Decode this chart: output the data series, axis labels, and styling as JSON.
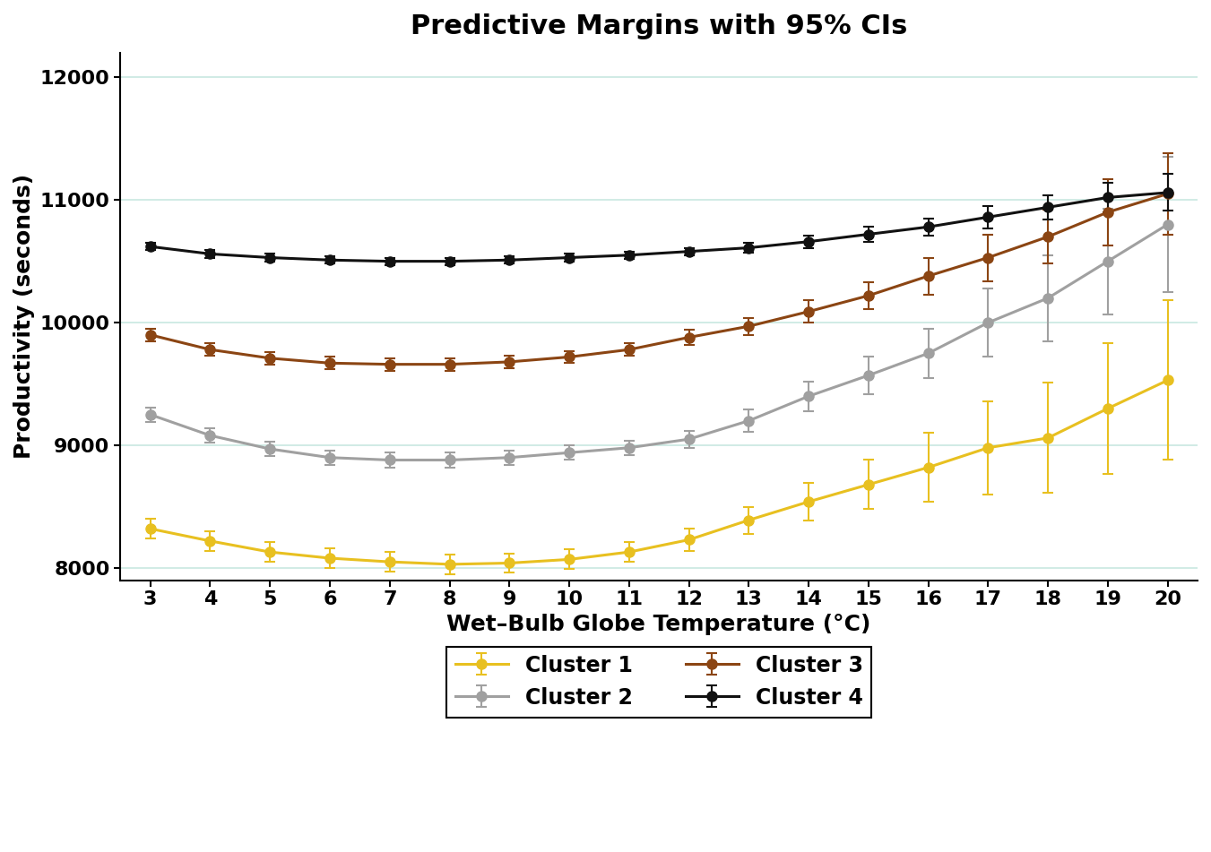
{
  "title": "Predictive Margins with 95% CIs",
  "xlabel": "Wet–Bulb Globe Temperature (°C)",
  "ylabel": "Productivity (seconds)",
  "temps": [
    3,
    4,
    5,
    6,
    7,
    8,
    9,
    10,
    11,
    12,
    13,
    14,
    15,
    16,
    17,
    18,
    19,
    20
  ],
  "cluster1": {
    "y": [
      8320,
      8220,
      8130,
      8080,
      8050,
      8030,
      8040,
      8070,
      8130,
      8230,
      8390,
      8540,
      8680,
      8820,
      8980,
      9060,
      9300,
      9530
    ],
    "ci": [
      80,
      80,
      80,
      80,
      80,
      80,
      80,
      80,
      80,
      90,
      110,
      150,
      200,
      280,
      380,
      450,
      530,
      650
    ],
    "color": "#E8C020",
    "label": "Cluster 1"
  },
  "cluster2": {
    "y": [
      9250,
      9080,
      8970,
      8900,
      8880,
      8880,
      8900,
      8940,
      8980,
      9050,
      9200,
      9400,
      9570,
      9750,
      10000,
      10200,
      10500,
      10800
    ],
    "ci": [
      60,
      60,
      60,
      60,
      60,
      60,
      60,
      60,
      60,
      70,
      90,
      120,
      150,
      200,
      280,
      350,
      430,
      550
    ],
    "color": "#A0A0A0",
    "label": "Cluster 2"
  },
  "cluster3": {
    "y": [
      9900,
      9780,
      9710,
      9670,
      9660,
      9660,
      9680,
      9720,
      9780,
      9880,
      9970,
      10090,
      10220,
      10380,
      10530,
      10700,
      10900,
      11050
    ],
    "ci": [
      50,
      50,
      50,
      50,
      50,
      50,
      50,
      50,
      50,
      60,
      70,
      90,
      110,
      150,
      190,
      220,
      270,
      330
    ],
    "color": "#8B4513",
    "label": "Cluster 3"
  },
  "cluster4": {
    "y": [
      10620,
      10560,
      10530,
      10510,
      10500,
      10500,
      10510,
      10530,
      10550,
      10580,
      10610,
      10660,
      10720,
      10780,
      10860,
      10940,
      11020,
      11060
    ],
    "ci": [
      30,
      30,
      30,
      30,
      30,
      30,
      30,
      30,
      30,
      30,
      40,
      50,
      60,
      70,
      90,
      100,
      120,
      150
    ],
    "color": "#111111",
    "label": "Cluster 4"
  },
  "ylim": [
    7900,
    12200
  ],
  "yticks": [
    8000,
    9000,
    10000,
    11000,
    12000
  ],
  "grid_color": "#c8e8e0",
  "background_color": "#ffffff",
  "title_fontsize": 22,
  "label_fontsize": 18,
  "tick_fontsize": 16,
  "legend_fontsize": 17
}
